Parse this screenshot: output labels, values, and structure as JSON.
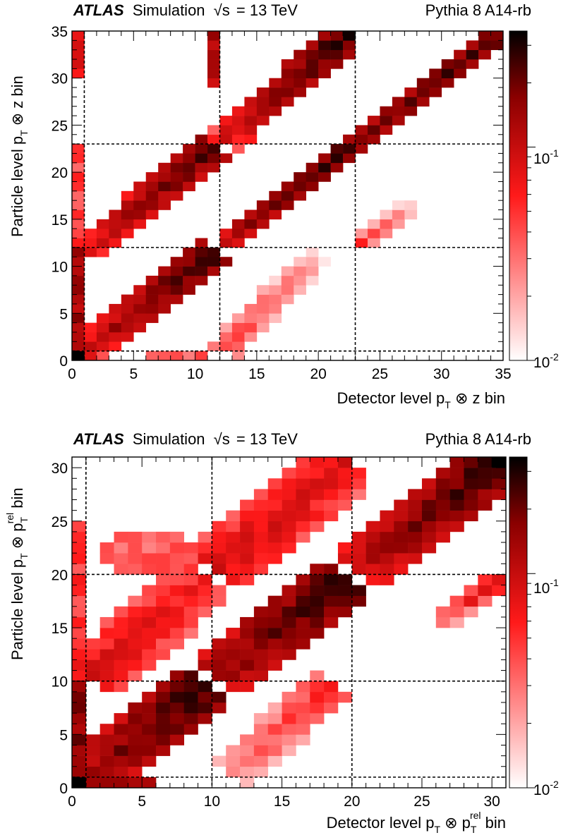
{
  "charts": [
    {
      "header_left_bold": "ATLAS",
      "header_left_rest": "Simulation",
      "header_energy_symbol": "√s",
      "header_energy_value": "= 13 TeV",
      "header_right": "Pythia 8 A14-rb",
      "xlabel": "Detector level p_T ⊗ z bin",
      "ylabel": "Particle level p_T ⊗ z bin",
      "colorbar_top": "10^-1",
      "colorbar_bottom": "10^-2"
    },
    {
      "header_left_bold": "ATLAS",
      "header_left_rest": "Simulation",
      "header_energy_symbol": "√s",
      "header_energy_value": "= 13 TeV",
      "header_right": "Pythia 8 A14-rb",
      "xlabel": "Detector level p_T ⊗ p_T^rel bin",
      "ylabel": "Particle level p_T ⊗ p_T^rel bin",
      "colorbar_top": "10^-1",
      "colorbar_bottom": "10^-2"
    }
  ],
  "chart_data": [
    {
      "type": "heatmap",
      "title": "ATLAS Simulation √s = 13 TeV   Pythia 8 A14-rb",
      "xlabel": "Detector level p_T ⊗ z bin",
      "ylabel": "Particle level p_T ⊗ z bin",
      "xlim": [
        0,
        35
      ],
      "ylim": [
        0,
        35
      ],
      "xticks": [
        0,
        5,
        10,
        15,
        20,
        25,
        30,
        35
      ],
      "yticks": [
        0,
        5,
        10,
        15,
        20,
        25,
        30,
        35
      ],
      "z_scale": "log",
      "zlim": [
        0.01,
        0.35
      ],
      "z_ticks": [
        "10^-1",
        "10^-2"
      ],
      "dashed_lines": [
        1,
        12,
        23
      ],
      "colormap": [
        "#ffffff",
        "#ff0000",
        "#000000"
      ],
      "grid": false,
      "bands": [
        {
          "x0": 1.2,
          "x1": 11.3,
          "y0": 1.2,
          "y1": 11.3,
          "z0": 0.09,
          "z1": 0.3,
          "width": 1.6
        },
        {
          "x0": 12.3,
          "x1": 22.3,
          "y0": 12.3,
          "y1": 22.3,
          "z0": 0.13,
          "z1": 0.28,
          "width": 1.3
        },
        {
          "x0": 23.3,
          "x1": 34.3,
          "y0": 23.3,
          "y1": 34.3,
          "z0": 0.18,
          "z1": 0.25,
          "width": 1.3
        },
        {
          "x0": 1.5,
          "x1": 11.3,
          "y0": 12.0,
          "y1": 22.5,
          "z0": 0.08,
          "z1": 0.25,
          "width": 1.6
        },
        {
          "x0": 12.3,
          "x1": 22.3,
          "y0": 23.3,
          "y1": 34.6,
          "z0": 0.08,
          "z1": 0.3,
          "width": 1.6
        },
        {
          "x0": 12.3,
          "x1": 20.0,
          "y0": 1.2,
          "y1": 11.3,
          "z0": 0.05,
          "z1": 0.02,
          "width": 1.4
        },
        {
          "x0": 23.3,
          "x1": 27.5,
          "y0": 12.3,
          "y1": 16.3,
          "z0": 0.05,
          "z1": 0.02,
          "width": 1.1
        }
      ],
      "edge_columns": [
        {
          "x": 0.5,
          "y0": 1.0,
          "y1": 11.5,
          "z": 0.14
        },
        {
          "x": 0.5,
          "y0": 12.0,
          "y1": 22.5,
          "z": 0.045
        },
        {
          "x": 0.5,
          "y0": 30.0,
          "y1": 34.5,
          "z": 0.08
        },
        {
          "x": 11.5,
          "y0": 29.0,
          "y1": 34.5,
          "z": 0.12
        }
      ],
      "edge_rows": [
        {
          "y": 0.5,
          "x0": 6.0,
          "x1": 11.0,
          "z": 0.035
        }
      ],
      "corner": {
        "x": 0.5,
        "y": 0.5,
        "z": 0.35
      }
    },
    {
      "type": "heatmap",
      "title": "ATLAS Simulation √s = 13 TeV   Pythia 8 A14-rb",
      "xlabel": "Detector level p_T ⊗ p_T^rel bin",
      "ylabel": "Particle level p_T ⊗ p_T^rel bin",
      "xlim": [
        0,
        31
      ],
      "ylim": [
        0,
        31
      ],
      "xticks": [
        0,
        5,
        10,
        15,
        20,
        25,
        30
      ],
      "yticks": [
        0,
        5,
        10,
        15,
        20,
        25,
        30
      ],
      "z_scale": "log",
      "zlim": [
        0.01,
        0.35
      ],
      "z_ticks": [
        "10^-1",
        "10^-2"
      ],
      "dashed_lines": [
        1,
        10,
        20
      ],
      "colormap": [
        "#ffffff",
        "#ff0000",
        "#000000"
      ],
      "grid": false,
      "bands": [
        {
          "x0": 1.5,
          "x1": 9.5,
          "y0": 1.5,
          "y1": 9.5,
          "z0": 0.14,
          "z1": 0.3,
          "width": 2.6
        },
        {
          "x0": 10.5,
          "x1": 19.5,
          "y0": 10.5,
          "y1": 19.5,
          "z0": 0.14,
          "z1": 0.3,
          "width": 2.6
        },
        {
          "x0": 20.5,
          "x1": 30.5,
          "y0": 20.5,
          "y1": 30.5,
          "z0": 0.12,
          "z1": 0.3,
          "width": 2.2
        },
        {
          "x0": 1.5,
          "x1": 9.5,
          "y0": 10.5,
          "y1": 19.5,
          "z0": 0.09,
          "z1": 0.06,
          "width": 2.6
        },
        {
          "x0": 10.5,
          "x1": 19.5,
          "y0": 20.5,
          "y1": 30.5,
          "z0": 0.09,
          "z1": 0.08,
          "width": 2.8
        },
        {
          "x0": 11.5,
          "x1": 18.5,
          "y0": 1.5,
          "y1": 9.5,
          "z0": 0.03,
          "z1": 0.06,
          "width": 1.8
        },
        {
          "x0": 26.0,
          "x1": 30.5,
          "y0": 15.5,
          "y1": 19.5,
          "z0": 0.03,
          "z1": 0.1,
          "width": 1.0
        }
      ],
      "blobs": [
        {
          "x": 5.5,
          "y": 22.0,
          "rx": 3.5,
          "ry": 2.0,
          "z": 0.035
        }
      ],
      "edge_columns": [
        {
          "x": 0.5,
          "y0": 1.0,
          "y1": 9.5,
          "z": 0.17
        },
        {
          "x": 0.5,
          "y0": 10.5,
          "y1": 24.5,
          "z": 0.05
        }
      ],
      "edge_rows": [
        {
          "y": 0.5,
          "x0": 1.0,
          "x1": 5.5,
          "z": 0.12
        }
      ],
      "corner": {
        "x": 0.5,
        "y": 0.5,
        "z": 0.35
      }
    }
  ]
}
